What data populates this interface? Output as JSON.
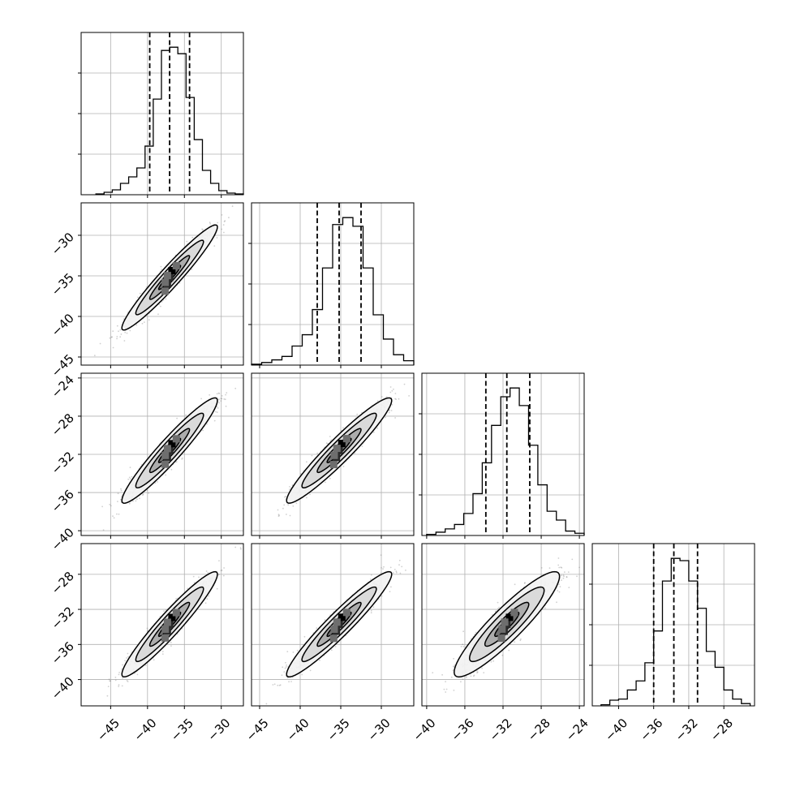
{
  "chart_data": {
    "type": "corner",
    "variables": [
      {
        "index": 0,
        "median": -37.0,
        "q16": -39.7,
        "q84": -34.3,
        "range": [
          -49,
          -27
        ],
        "ticks": [
          -45,
          -40,
          -35,
          -30
        ],
        "tick_labels": [
          "−45",
          "−40",
          "−35",
          "−30"
        ]
      },
      {
        "index": 1,
        "median": -35.2,
        "q16": -37.9,
        "q84": -32.5,
        "range": [
          -46,
          -26
        ],
        "ticks": [
          -45,
          -40,
          -35,
          -30
        ],
        "tick_labels": [
          "−45",
          "−40",
          "−35",
          "−30"
        ]
      },
      {
        "index": 2,
        "median": -31.6,
        "q16": -33.8,
        "q84": -29.2,
        "range": [
          -40.5,
          -23.5
        ],
        "ticks": [
          -40,
          -36,
          -32,
          -28,
          -24
        ],
        "tick_labels": [
          "−40",
          "−36",
          "−32",
          "−28",
          "−24"
        ]
      },
      {
        "index": 3,
        "median": -33.7,
        "q16": -36.0,
        "q84": -31.0,
        "range": [
          -43,
          -24.5
        ],
        "ticks": [
          -40,
          -36,
          -32,
          -28
        ],
        "tick_labels": [
          "−40",
          "−36",
          "−32",
          "−28"
        ]
      }
    ],
    "histograms": [
      {
        "var": 0,
        "bin_edges_range": [
          -47,
          -27
        ],
        "counts": [
          1,
          3,
          6,
          14,
          22,
          33,
          60,
          118,
          178,
          182,
          174,
          120,
          68,
          30,
          14,
          5,
          2,
          1
        ]
      },
      {
        "var": 1,
        "bin_edges_range": [
          -46,
          -26
        ],
        "counts": [
          1,
          3,
          6,
          10,
          22,
          35,
          64,
          112,
          162,
          170,
          160,
          112,
          58,
          30,
          12,
          5
        ]
      },
      {
        "var": 2,
        "bin_edges_range": [
          -40,
          -23.5
        ],
        "counts": [
          1,
          3,
          6,
          10,
          20,
          38,
          66,
          100,
          126,
          134,
          118,
          82,
          46,
          22,
          14,
          4,
          2
        ]
      },
      {
        "var": 3,
        "bin_edges_range": [
          -42,
          -25
        ],
        "counts": [
          1,
          5,
          6,
          14,
          22,
          38,
          66,
          110,
          130,
          128,
          110,
          86,
          48,
          34,
          14,
          6,
          2
        ]
      }
    ],
    "correlations": {
      "1,0": 0.96,
      "2,0": 0.95,
      "2,1": 0.95,
      "3,0": 0.95,
      "3,1": 0.95,
      "3,2": 0.91
    },
    "quantile_lines": "dashed",
    "contour_levels": 4,
    "grid": true,
    "title": "",
    "xlabel": "",
    "ylabel": ""
  },
  "colors": {
    "axis": "#000000",
    "grid": "#b0b0b0",
    "scatter": "#777777",
    "contour_line": "#000000",
    "fill_levels": [
      "#f2f2f2",
      "#d8d8d8",
      "#a8a8a8",
      "#6e6e6e",
      "#2a2a2a",
      "#000000"
    ]
  }
}
